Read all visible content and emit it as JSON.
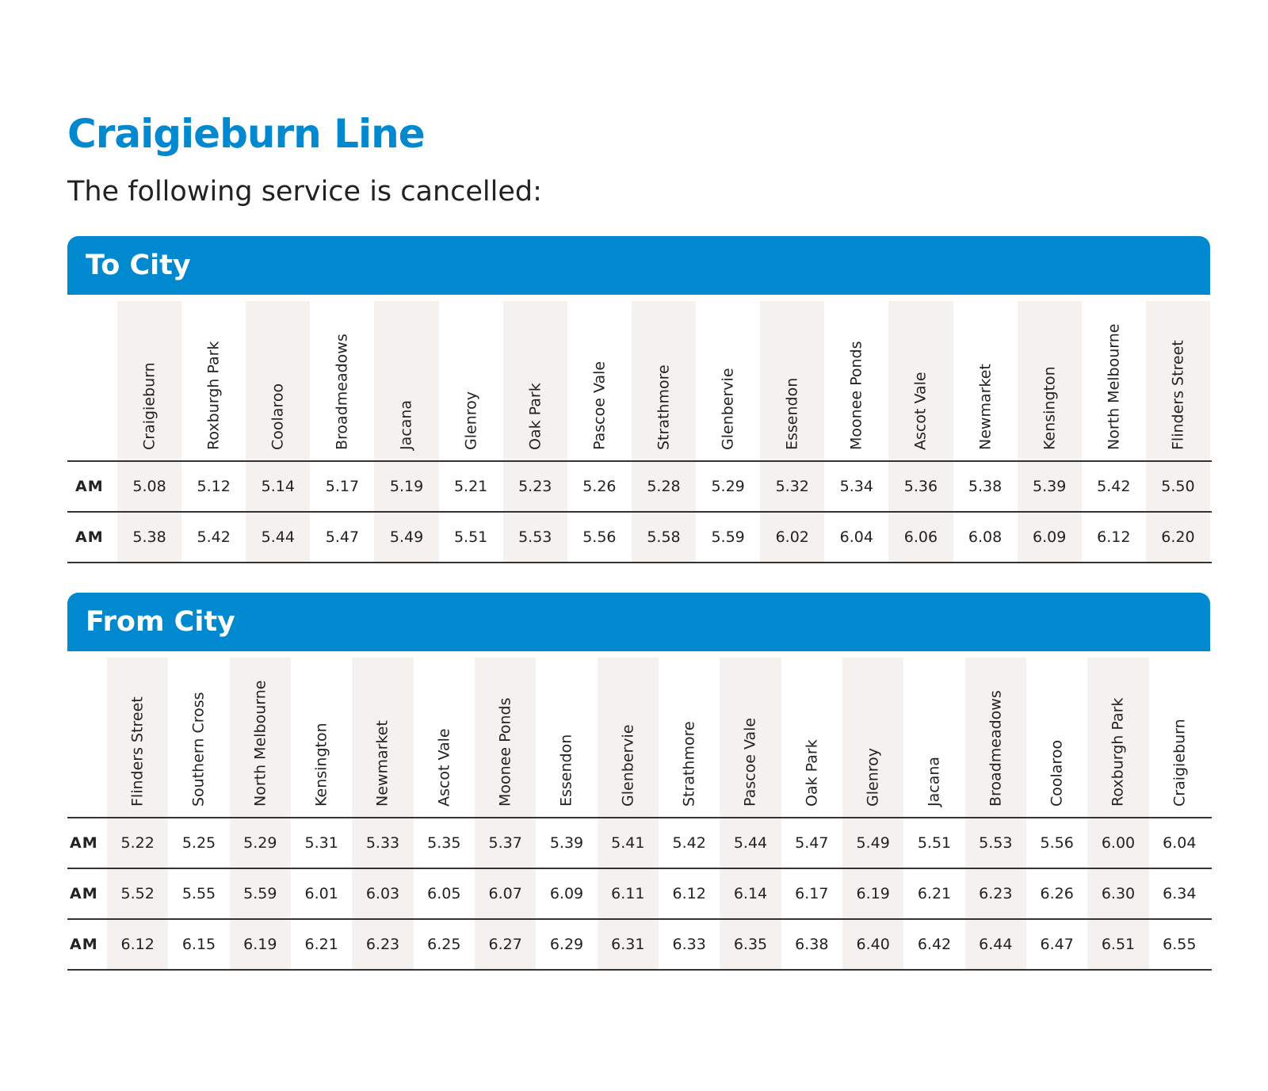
{
  "header": {
    "title": "Craigieburn Line",
    "subtitle": "The following service is cancelled:"
  },
  "sections": [
    {
      "heading": "To City",
      "stations": [
        "Craigieburn",
        "Roxburgh Park",
        "Coolaroo",
        "Broadmeadows",
        "Jacana",
        "Glenroy",
        "Oak Park",
        "Pascoe Vale",
        "Strathmore",
        "Glenbervie",
        "Essendon",
        "Moonee Ponds",
        "Ascot Vale",
        "Newmarket",
        "Kensington",
        "North Melbourne",
        "Flinders Street"
      ],
      "rows": [
        {
          "period": "AM",
          "times": [
            "5.08",
            "5.12",
            "5.14",
            "5.17",
            "5.19",
            "5.21",
            "5.23",
            "5.26",
            "5.28",
            "5.29",
            "5.32",
            "5.34",
            "5.36",
            "5.38",
            "5.39",
            "5.42",
            "5.50"
          ]
        },
        {
          "period": "AM",
          "times": [
            "5.38",
            "5.42",
            "5.44",
            "5.47",
            "5.49",
            "5.51",
            "5.53",
            "5.56",
            "5.58",
            "5.59",
            "6.02",
            "6.04",
            "6.06",
            "6.08",
            "6.09",
            "6.12",
            "6.20"
          ]
        }
      ]
    },
    {
      "heading": "From City",
      "stations": [
        "Flinders Street",
        "Southern Cross",
        "North Melbourne",
        "Kensington",
        "Newmarket",
        "Ascot Vale",
        "Moonee Ponds",
        "Essendon",
        "Glenbervie",
        "Strathmore",
        "Pascoe Vale",
        "Oak Park",
        "Glenroy",
        "Jacana",
        "Broadmeadows",
        "Coolaroo",
        "Roxburgh Park",
        "Craigieburn"
      ],
      "rows": [
        {
          "period": "AM",
          "times": [
            "5.22",
            "5.25",
            "5.29",
            "5.31",
            "5.33",
            "5.35",
            "5.37",
            "5.39",
            "5.41",
            "5.42",
            "5.44",
            "5.47",
            "5.49",
            "5.51",
            "5.53",
            "5.56",
            "6.00",
            "6.04"
          ]
        },
        {
          "period": "AM",
          "times": [
            "5.52",
            "5.55",
            "5.59",
            "6.01",
            "6.03",
            "6.05",
            "6.07",
            "6.09",
            "6.11",
            "6.12",
            "6.14",
            "6.17",
            "6.19",
            "6.21",
            "6.23",
            "6.26",
            "6.30",
            "6.34"
          ]
        },
        {
          "period": "AM",
          "times": [
            "6.12",
            "6.15",
            "6.19",
            "6.21",
            "6.23",
            "6.25",
            "6.27",
            "6.29",
            "6.31",
            "6.33",
            "6.35",
            "6.38",
            "6.40",
            "6.42",
            "6.44",
            "6.47",
            "6.51",
            "6.55"
          ]
        }
      ]
    }
  ]
}
